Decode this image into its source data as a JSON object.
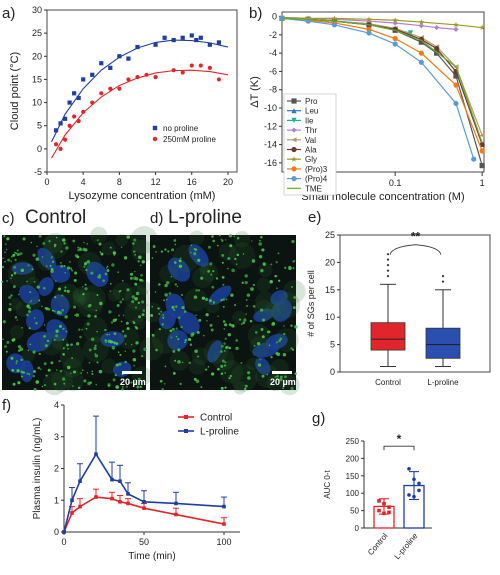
{
  "panels": {
    "a": "a)",
    "b": "b)",
    "c": "c)",
    "d": "d)",
    "e": "e)",
    "f": "f)",
    "g": "g)"
  },
  "micro": {
    "control_title": "Control",
    "lproline_title": "L-proline",
    "scale_c": "20 µm",
    "scale_d": "20 µm"
  },
  "colors": {
    "blue": "#1f3ea0",
    "red": "#e0262b",
    "stain_green": "#45c84a",
    "nucleus_blue": "#1b3f9a"
  },
  "chart_data": [
    {
      "id": "a",
      "type": "scatter",
      "xlabel": "Lysozyme concentration (mM)",
      "ylabel": "Cloud point (°C)",
      "xlim": [
        0,
        21
      ],
      "ylim": [
        -5,
        30
      ],
      "xticks": [
        "0",
        "4",
        "8",
        "12",
        "16",
        "20"
      ],
      "yticks": [
        "-5",
        "0",
        "5",
        "10",
        "15",
        "20",
        "25",
        "30"
      ],
      "legend_position": "bottom-right",
      "series": [
        {
          "name": "no proline",
          "color": "#1f3ea0",
          "marker": "square",
          "x": [
            1.0,
            1.5,
            2.0,
            2.5,
            3.0,
            3.5,
            4.0,
            5.0,
            6.0,
            7.0,
            8.0,
            9.0,
            10.0,
            12.0,
            13.0,
            14.0,
            15.0,
            16.0,
            16.5,
            17.0,
            18.0,
            19.0
          ],
          "y": [
            4.0,
            5.5,
            6.5,
            10.0,
            12.0,
            11.0,
            15.0,
            16.0,
            18.5,
            17.5,
            20.0,
            19.5,
            22.0,
            22.5,
            24.0,
            23.5,
            24.0,
            24.5,
            23.5,
            24.0,
            22.5,
            23.0
          ]
        },
        {
          "name": "250mM proline",
          "color": "#e0262b",
          "marker": "circle",
          "x": [
            1.0,
            1.5,
            2.0,
            2.5,
            3.0,
            3.5,
            4.0,
            5.0,
            6.0,
            7.0,
            8.0,
            9.0,
            10.0,
            11.0,
            12.0,
            14.0,
            15.0,
            16.0,
            17.0,
            18.0,
            19.0
          ],
          "y": [
            1.0,
            0.0,
            2.0,
            5.0,
            7.0,
            6.0,
            8.0,
            10.0,
            12.0,
            13.0,
            13.0,
            15.0,
            15.5,
            16.0,
            15.5,
            17.0,
            16.5,
            18.0,
            18.0,
            17.5,
            15.0
          ]
        }
      ],
      "fits": [
        {
          "color": "#1f3ea0",
          "x": [
            0.5,
            2,
            4,
            6,
            8,
            10,
            12,
            14,
            16,
            18,
            20
          ],
          "y": [
            1.5,
            7.5,
            13.0,
            17.0,
            19.8,
            21.8,
            23.0,
            23.5,
            23.4,
            22.9,
            22.0
          ]
        },
        {
          "color": "#e0262b",
          "x": [
            0.5,
            2,
            4,
            6,
            8,
            10,
            12,
            14,
            16,
            18,
            20
          ],
          "y": [
            -2.0,
            3.0,
            7.8,
            11.2,
            13.7,
            15.3,
            16.4,
            16.9,
            17.0,
            16.7,
            16.0
          ]
        }
      ]
    },
    {
      "id": "b",
      "type": "line",
      "xlabel": "Small molecule concentration (M)",
      "ylabel": "ΔT (K)",
      "xscale": "log",
      "xlim": [
        0.005,
        1.05
      ],
      "ylim": [
        -17,
        0.5
      ],
      "xticks": [
        "0.01",
        "0.1",
        "1"
      ],
      "yticks": [
        "0",
        "-2",
        "-4",
        "-6",
        "-8",
        "-10",
        "-12",
        "-14",
        "-16"
      ],
      "legend_position": "bottom-left",
      "series": [
        {
          "name": "Pro",
          "color": "#555555",
          "marker": "square",
          "x": [
            0.005,
            0.01,
            0.02,
            0.05,
            0.1,
            0.2,
            0.3,
            0.5,
            1.0
          ],
          "y": [
            -0.2,
            -0.3,
            -0.5,
            -0.9,
            -1.5,
            -2.8,
            -4.0,
            -6.5,
            -16.3
          ]
        },
        {
          "name": "Leu",
          "color": "#2f74c0",
          "marker": "triangle-up",
          "x": [
            0.005,
            0.01,
            0.02,
            0.05,
            0.1,
            0.15
          ],
          "y": [
            -0.2,
            -0.3,
            -0.5,
            -0.8,
            -1.3,
            -1.9
          ]
        },
        {
          "name": "Ile",
          "color": "#19b59a",
          "marker": "triangle-down",
          "x": [
            0.005,
            0.01,
            0.02,
            0.05,
            0.1,
            0.15
          ],
          "y": [
            -0.2,
            -0.3,
            -0.5,
            -0.9,
            -1.4,
            -1.8
          ]
        },
        {
          "name": "Thr",
          "color": "#b07fd0",
          "marker": "diamond",
          "x": [
            0.005,
            0.01,
            0.02,
            0.05,
            0.1,
            0.2,
            0.3,
            0.5
          ],
          "y": [
            -0.1,
            -0.2,
            -0.3,
            -0.5,
            -0.7,
            -1.0,
            -1.2,
            -1.4
          ]
        },
        {
          "name": "Val",
          "color": "#b89a6a",
          "marker": "triangle-left",
          "x": [
            0.005,
            0.01,
            0.02,
            0.05,
            0.1,
            0.2,
            0.3,
            0.5,
            1.0
          ],
          "y": [
            -0.2,
            -0.3,
            -0.5,
            -0.8,
            -1.3,
            -2.3,
            -3.3,
            -5.5,
            -13.0
          ]
        },
        {
          "name": "Ala",
          "color": "#6b3a2a",
          "marker": "circle",
          "x": [
            0.005,
            0.01,
            0.02,
            0.05,
            0.1,
            0.2,
            0.3,
            0.5,
            1.0
          ],
          "y": [
            -0.2,
            -0.3,
            -0.5,
            -0.9,
            -1.4,
            -2.5,
            -3.5,
            -6.0,
            -14.0
          ]
        },
        {
          "name": "Gly",
          "color": "#9a9a2a",
          "marker": "star",
          "x": [
            0.005,
            0.01,
            0.02,
            0.05,
            0.1,
            0.2,
            0.5,
            1.0
          ],
          "y": [
            -0.1,
            -0.2,
            -0.2,
            -0.3,
            -0.4,
            -0.6,
            -0.9,
            -1.2
          ]
        },
        {
          "name": "(Pro)3",
          "color": "#f07a1a",
          "marker": "hexagon",
          "x": [
            0.005,
            0.01,
            0.02,
            0.05,
            0.1,
            0.2,
            0.5,
            1.0
          ],
          "y": [
            -0.2,
            -0.4,
            -0.7,
            -1.4,
            -2.4,
            -4.0,
            -7.5,
            -14.7
          ]
        },
        {
          "name": "(Pro)4",
          "color": "#5b9bd5",
          "marker": "circle",
          "x": [
            0.005,
            0.01,
            0.02,
            0.05,
            0.1,
            0.2,
            0.5,
            0.8
          ],
          "y": [
            -0.2,
            -0.5,
            -0.9,
            -1.8,
            -3.0,
            -5.0,
            -9.5,
            -15.6
          ]
        },
        {
          "name": "TME",
          "color": "#6aa82a",
          "marker": "none",
          "x": [
            0.005,
            0.01,
            0.02,
            0.05,
            0.1,
            0.2,
            0.5,
            1.0
          ],
          "y": [
            -0.2,
            -0.3,
            -0.5,
            -0.9,
            -1.5,
            -2.6,
            -5.5,
            -13.8
          ]
        }
      ]
    },
    {
      "id": "e",
      "type": "box",
      "ylabel": "# of SGs per cell",
      "ylim": [
        0,
        25
      ],
      "yticks": [
        "0",
        "5",
        "10",
        "15",
        "20",
        "25"
      ],
      "categories": [
        "Control",
        "L-proline"
      ],
      "colors": [
        "#e0262b",
        "#2a4fb0"
      ],
      "boxes": [
        {
          "min": 1,
          "q1": 4,
          "median": 6,
          "q3": 9,
          "max": 16,
          "outliers": [
            17.5,
            18.5,
            19.5,
            20.5,
            21.5
          ]
        },
        {
          "min": 1,
          "q1": 2.5,
          "median": 5,
          "q3": 8,
          "max": 15,
          "outliers": [
            16.5,
            17.5
          ]
        }
      ],
      "significance": "**"
    },
    {
      "id": "f",
      "type": "line",
      "xlabel": "Time (min)",
      "ylabel": "Plasma insulin (ng/mL)",
      "xlim": [
        0,
        110
      ],
      "ylim": [
        0,
        4
      ],
      "xticks": [
        "0",
        "50",
        "100"
      ],
      "yticks": [
        "0",
        "1",
        "2",
        "3",
        "4"
      ],
      "legend_position": "top-right",
      "series": [
        {
          "name": "Control",
          "color": "#e0262b",
          "x": [
            0,
            5,
            10,
            20,
            30,
            35,
            40,
            50,
            70,
            100
          ],
          "y": [
            0.0,
            0.6,
            0.8,
            1.1,
            1.05,
            0.95,
            0.9,
            0.75,
            0.55,
            0.25
          ],
          "err": [
            0,
            0.2,
            0.25,
            0.25,
            0.2,
            0.2,
            0.15,
            0.15,
            0.2,
            0.2
          ]
        },
        {
          "name": "L-proline",
          "color": "#1f3ea0",
          "x": [
            0,
            5,
            10,
            20,
            30,
            35,
            40,
            50,
            70,
            100
          ],
          "y": [
            0.0,
            1.0,
            1.6,
            2.45,
            1.65,
            1.6,
            1.2,
            0.95,
            0.9,
            0.8
          ],
          "err": [
            0,
            0.4,
            0.55,
            1.2,
            0.55,
            0.5,
            0.35,
            0.35,
            0.35,
            0.3
          ]
        }
      ]
    },
    {
      "id": "g",
      "type": "bar",
      "ylabel": "AUC 0-t",
      "ylim": [
        0,
        250
      ],
      "yticks": [
        "0",
        "50",
        "100",
        "150",
        "200",
        "250"
      ],
      "categories": [
        "Control",
        "L-proline"
      ],
      "values": [
        62,
        122
      ],
      "errors": [
        22,
        40
      ],
      "colors": [
        "#e0262b",
        "#1f3ea0"
      ],
      "points": [
        [
          78,
          70,
          60,
          50,
          42,
          45
        ],
        [
          170,
          140,
          128,
          95,
          90,
          108
        ]
      ],
      "significance": "*"
    }
  ]
}
